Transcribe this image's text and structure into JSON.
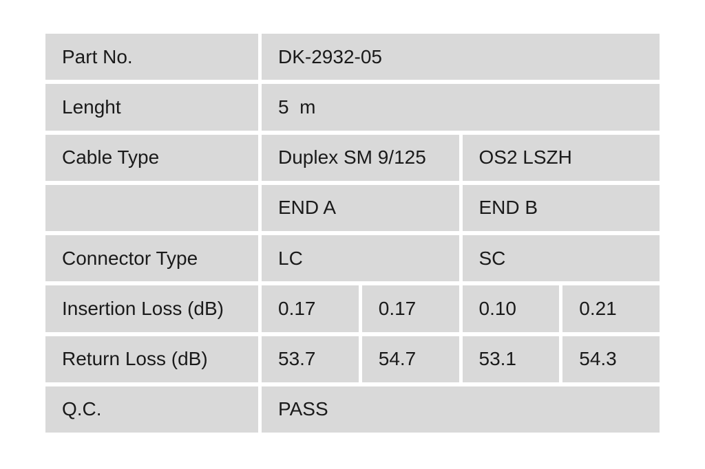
{
  "colors": {
    "page_background": "#ffffff",
    "cell_background": "#d9d9d9",
    "text": "#1a1a1a"
  },
  "table": {
    "part_no": {
      "label": "Part No.",
      "value": "DK-2932-05"
    },
    "length": {
      "label": "Lenght",
      "value": "5  m"
    },
    "cable_type": {
      "label": "Cable Type",
      "value_left": "Duplex SM 9/125",
      "value_right": "OS2 LSZH"
    },
    "ends_header": {
      "label": "",
      "end_a": "END A",
      "end_b": "END B"
    },
    "connector_type": {
      "label": "Connector Type",
      "end_a": "LC",
      "end_b": "SC"
    },
    "insertion_loss": {
      "label": "Insertion Loss (dB)",
      "values": [
        "0.17",
        "0.17",
        "0.10",
        "0.21"
      ]
    },
    "return_loss": {
      "label": "Return Loss (dB)",
      "values": [
        "53.7",
        "54.7",
        "53.1",
        "54.3"
      ]
    },
    "qc": {
      "label": "Q.C.",
      "value": "PASS"
    }
  }
}
